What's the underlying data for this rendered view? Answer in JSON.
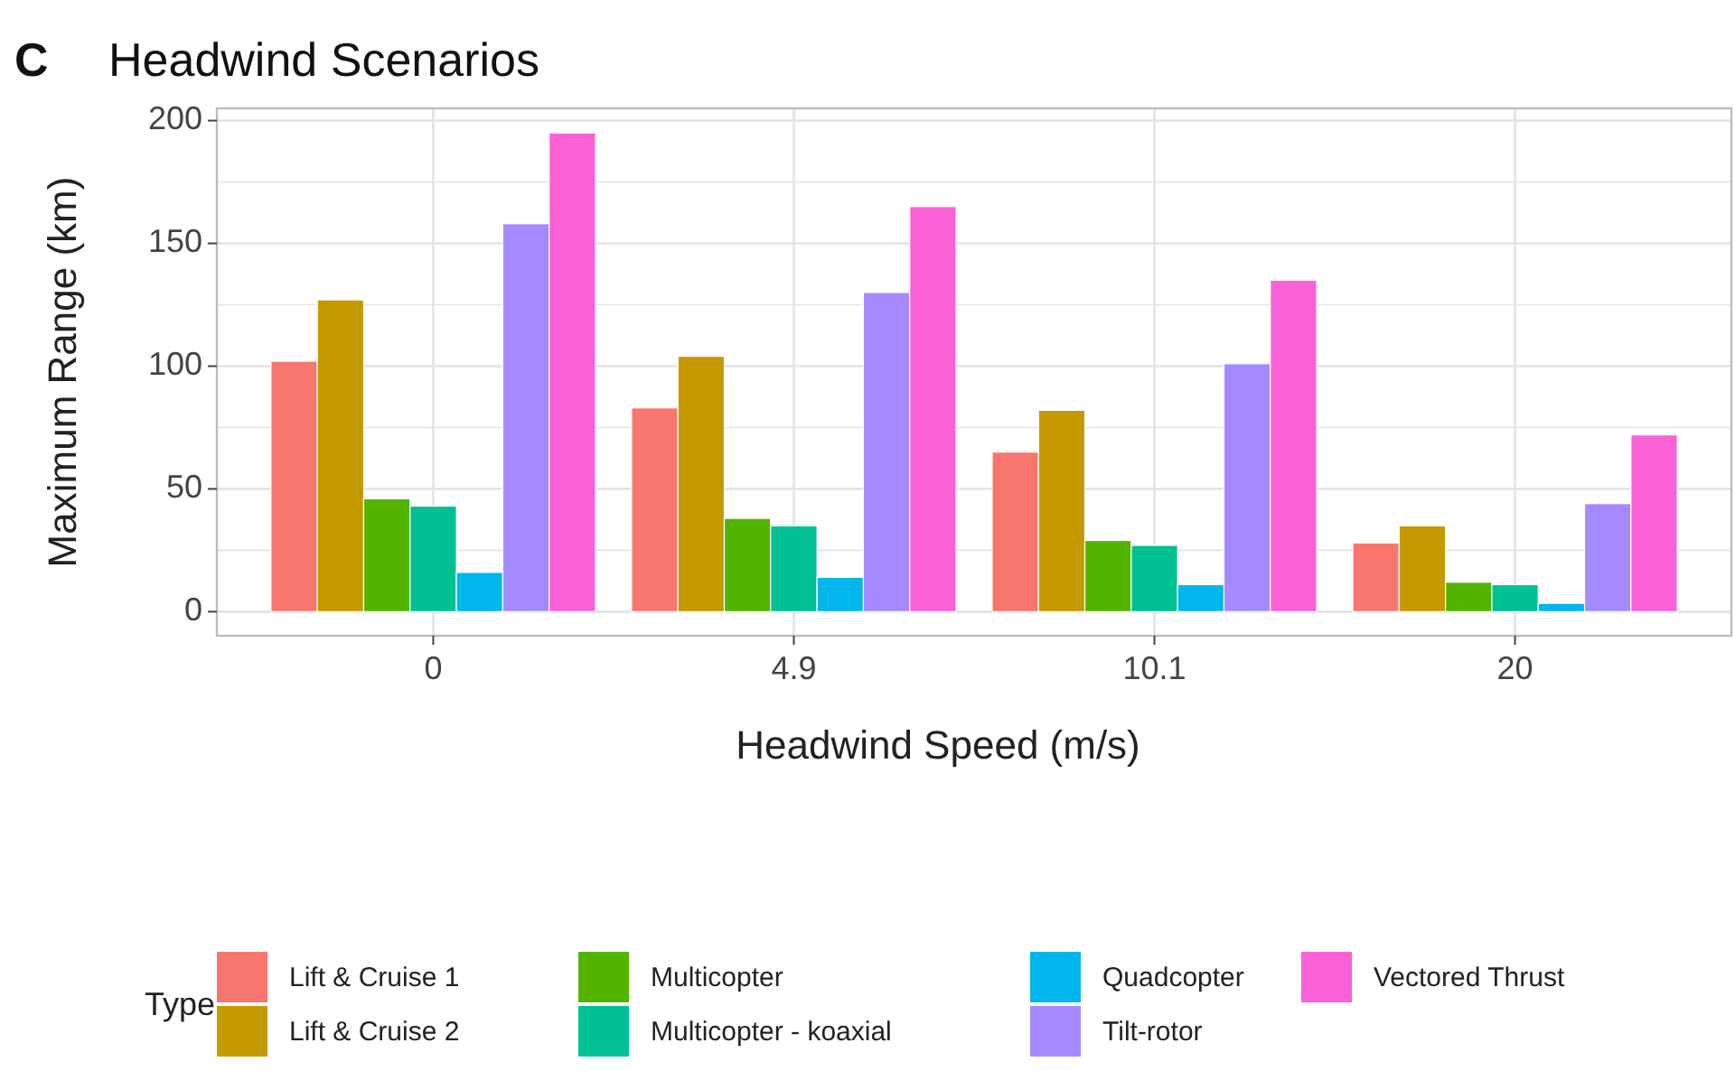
{
  "chart_data": {
    "type": "bar",
    "title": "Headwind Scenarios",
    "annotations": [
      "C"
    ],
    "xlabel": "Headwind Speed (m/s)",
    "ylabel": "Maximum Range (km)",
    "legend_title": "Type",
    "legend": "bottom",
    "grid": true,
    "categories": [
      "0",
      "4.9",
      "10.1",
      "20"
    ],
    "ylim": [
      -9.8,
      205
    ],
    "yticks": [
      0,
      {
        "value": 25,
        "label": null
      },
      50,
      {
        "value": 75,
        "label": null
      },
      100,
      {
        "value": 125,
        "label": null
      },
      150,
      {
        "value": 175,
        "label": null
      },
      200
    ],
    "series": [
      {
        "name": "Lift & Cruise 1",
        "color": "#f8766d",
        "values": [
          102,
          83,
          65,
          28
        ]
      },
      {
        "name": "Lift & Cruise 2",
        "color": "#c49a00",
        "values": [
          127,
          104,
          82,
          35
        ]
      },
      {
        "name": "Multicopter",
        "color": "#53b400",
        "values": [
          46,
          38,
          29,
          12
        ]
      },
      {
        "name": "Multicopter - koaxial",
        "color": "#00c094",
        "values": [
          43,
          35,
          27,
          11
        ]
      },
      {
        "name": "Quadcopter",
        "color": "#00b6eb",
        "values": [
          16,
          14,
          11,
          3.4
        ]
      },
      {
        "name": "Tilt-rotor",
        "color": "#a58aff",
        "values": [
          158,
          130,
          101,
          44
        ]
      },
      {
        "name": "Vectored Thrust",
        "color": "#fb61d7",
        "values": [
          195,
          165,
          135,
          72
        ]
      }
    ]
  }
}
